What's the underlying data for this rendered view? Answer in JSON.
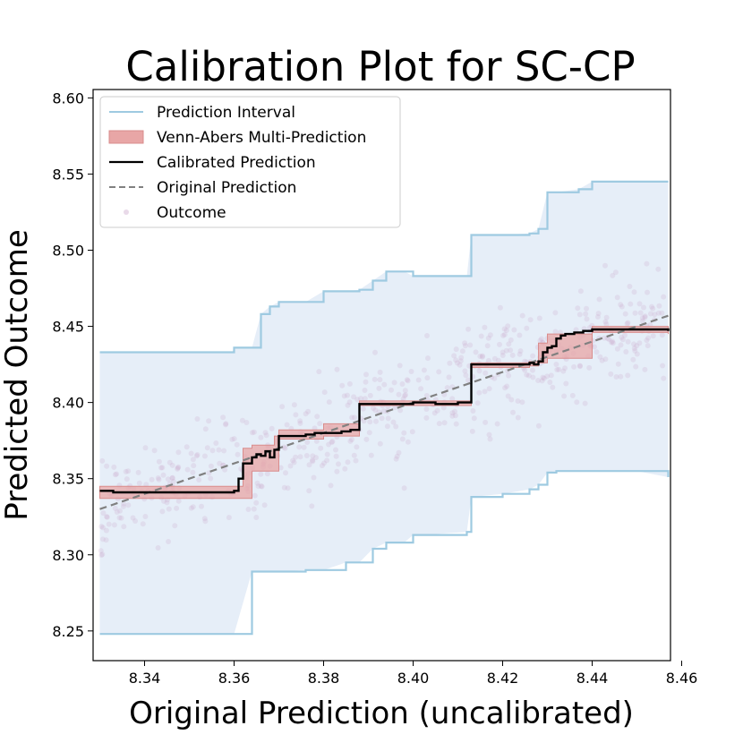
{
  "chart_data": {
    "type": "line",
    "title": "Calibration Plot for SC-CP",
    "xlabel": "Original Prediction (uncalibrated)",
    "ylabel": "Predicted Outcome",
    "xlim": [
      8.3285,
      8.4575
    ],
    "ylim": [
      8.2305,
      8.6055
    ],
    "xticks": [
      8.34,
      8.36,
      8.38,
      8.4,
      8.42,
      8.44,
      8.46
    ],
    "yticks": [
      8.25,
      8.3,
      8.35,
      8.4,
      8.45,
      8.5,
      8.55,
      8.6
    ],
    "grid": false,
    "legend_position": "top-left",
    "legend": [
      "Prediction Interval",
      "Venn-Abers Multi-Prediction",
      "Calibrated Prediction",
      "Original Prediction",
      "Outcome"
    ],
    "colors": {
      "interval_line": "#9ecae1",
      "interval_fill": "#e3ecf7",
      "venn_fill": "#e8a6a6",
      "venn_edge": "#d98c8c",
      "calibrated": "#000000",
      "original": "#808080",
      "outcome": "#c8a2c8"
    },
    "prediction_interval": {
      "x": [
        8.33,
        8.3596,
        8.36,
        8.364,
        8.366,
        8.368,
        8.37,
        8.376,
        8.38,
        8.385,
        8.388,
        8.391,
        8.394,
        8.398,
        8.4,
        8.402,
        8.412,
        8.413,
        8.42,
        8.426,
        8.428,
        8.43,
        8.432,
        8.437,
        8.44,
        8.444,
        8.45,
        8.457
      ],
      "upper": [
        8.433,
        8.433,
        8.436,
        8.436,
        8.458,
        8.463,
        8.466,
        8.466,
        8.473,
        8.473,
        8.474,
        8.48,
        8.486,
        8.486,
        8.483,
        8.483,
        8.483,
        8.51,
        8.51,
        8.511,
        8.514,
        8.538,
        8.538,
        8.54,
        8.545,
        8.545,
        8.545,
        8.545
      ],
      "lower": [
        8.248,
        8.248,
        8.248,
        8.289,
        8.289,
        8.289,
        8.289,
        8.29,
        8.29,
        8.295,
        8.295,
        8.304,
        8.308,
        8.308,
        8.313,
        8.313,
        8.315,
        8.338,
        8.34,
        8.343,
        8.346,
        8.354,
        8.355,
        8.355,
        8.355,
        8.355,
        8.355,
        8.351
      ]
    },
    "venn_abers_band": {
      "x": [
        8.33,
        8.36,
        8.362,
        8.364,
        8.366,
        8.369,
        8.37,
        8.376,
        8.38,
        8.386,
        8.388,
        8.4,
        8.411,
        8.413,
        8.42,
        8.425,
        8.426,
        8.428,
        8.43,
        8.44,
        8.45,
        8.457
      ],
      "upper": [
        8.345,
        8.345,
        8.37,
        8.372,
        8.372,
        8.378,
        8.382,
        8.382,
        8.386,
        8.386,
        8.401,
        8.401,
        8.401,
        8.426,
        8.426,
        8.426,
        8.427,
        8.439,
        8.445,
        8.45,
        8.45,
        8.449
      ],
      "lower": [
        8.337,
        8.337,
        8.337,
        8.355,
        8.355,
        8.355,
        8.376,
        8.376,
        8.378,
        8.378,
        8.398,
        8.398,
        8.398,
        8.423,
        8.423,
        8.423,
        8.424,
        8.426,
        8.429,
        8.446,
        8.446,
        8.445
      ]
    },
    "calibrated_prediction": {
      "x": [
        8.33,
        8.333,
        8.336,
        8.34,
        8.35,
        8.359,
        8.36,
        8.361,
        8.362,
        8.363,
        8.364,
        8.365,
        8.366,
        8.367,
        8.368,
        8.369,
        8.37,
        8.372,
        8.374,
        8.376,
        8.378,
        8.38,
        8.384,
        8.386,
        8.387,
        8.388,
        8.39,
        8.395,
        8.4,
        8.405,
        8.41,
        8.412,
        8.413,
        8.418,
        8.423,
        8.425,
        8.426,
        8.427,
        8.428,
        8.429,
        8.43,
        8.431,
        8.432,
        8.433,
        8.434,
        8.436,
        8.438,
        8.44,
        8.445,
        8.45,
        8.456,
        8.457
      ],
      "y": [
        8.342,
        8.341,
        8.341,
        8.341,
        8.341,
        8.341,
        8.342,
        8.35,
        8.36,
        8.36,
        8.364,
        8.366,
        8.365,
        8.368,
        8.364,
        8.369,
        8.378,
        8.378,
        8.378,
        8.379,
        8.38,
        8.38,
        8.381,
        8.382,
        8.382,
        8.399,
        8.399,
        8.399,
        8.4,
        8.399,
        8.4,
        8.4,
        8.425,
        8.425,
        8.425,
        8.425,
        8.426,
        8.425,
        8.427,
        8.433,
        8.436,
        8.437,
        8.442,
        8.444,
        8.445,
        8.446,
        8.447,
        8.448,
        8.448,
        8.448,
        8.448,
        8.447
      ]
    },
    "original_prediction": {
      "x": [
        8.33,
        8.457
      ],
      "y": [
        8.33,
        8.457
      ]
    }
  }
}
